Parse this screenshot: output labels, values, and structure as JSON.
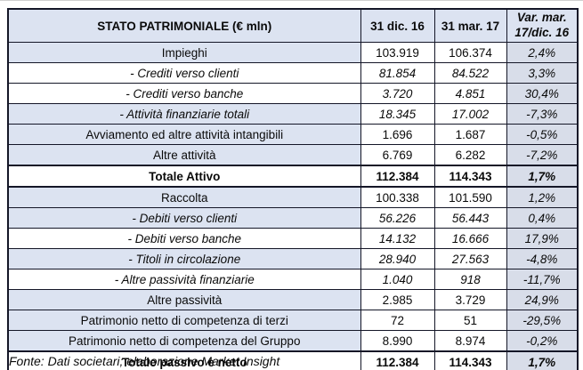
{
  "chart_data": {
    "type": "table",
    "title": "STATO PATRIMONIALE (€ mln)",
    "columns": [
      "STATO PATRIMONIALE (€ mln)",
      "31 dic. 16",
      "31 mar. 17",
      "Var. mar. 17/dic. 16"
    ],
    "rows": [
      {
        "label": "Impieghi",
        "dic16": "103.919",
        "mar17": "106.374",
        "var": "2,4%",
        "style": "normal",
        "shaded": true
      },
      {
        "label": "- Crediti verso clienti",
        "dic16": "81.854",
        "mar17": "84.522",
        "var": "3,3%",
        "style": "sub",
        "shaded": false
      },
      {
        "label": "- Crediti verso banche",
        "dic16": "3.720",
        "mar17": "4.851",
        "var": "30,4%",
        "style": "sub",
        "shaded": false
      },
      {
        "label": "- Attività finanziarie totali",
        "dic16": "18.345",
        "mar17": "17.002",
        "var": "-7,3%",
        "style": "sub",
        "shaded": true
      },
      {
        "label": "Avviamento ed altre attività intangibili",
        "dic16": "1.696",
        "mar17": "1.687",
        "var": "-0,5%",
        "style": "normal",
        "shaded": true
      },
      {
        "label": "Altre attività",
        "dic16": "6.769",
        "mar17": "6.282",
        "var": "-7,2%",
        "style": "normal",
        "shaded": true
      },
      {
        "label": "Totale Attivo",
        "dic16": "112.384",
        "mar17": "114.343",
        "var": "1,7%",
        "style": "total",
        "shaded": false
      },
      {
        "label": "Raccolta",
        "dic16": "100.338",
        "mar17": "101.590",
        "var": "1,2%",
        "style": "normal",
        "shaded": true
      },
      {
        "label": "- Debiti verso clienti",
        "dic16": "56.226",
        "mar17": "56.443",
        "var": "0,4%",
        "style": "sub",
        "shaded": true
      },
      {
        "label": "- Debiti verso banche",
        "dic16": "14.132",
        "mar17": "16.666",
        "var": "17,9%",
        "style": "sub",
        "shaded": false
      },
      {
        "label": "- Titoli in circolazione",
        "dic16": "28.940",
        "mar17": "27.563",
        "var": "-4,8%",
        "style": "sub",
        "shaded": true
      },
      {
        "label": "- Altre passività finanziarie",
        "dic16": "1.040",
        "mar17": "918",
        "var": "-11,7%",
        "style": "sub",
        "shaded": false
      },
      {
        "label": "Altre passività",
        "dic16": "2.985",
        "mar17": "3.729",
        "var": "24,9%",
        "style": "normal",
        "shaded": true
      },
      {
        "label": "Patrimonio netto di competenza di terzi",
        "dic16": "72",
        "mar17": "51",
        "var": "-29,5%",
        "style": "normal",
        "shaded": true
      },
      {
        "label": "Patrimonio netto di competenza del Gruppo",
        "dic16": "8.990",
        "mar17": "8.974",
        "var": "-0,2%",
        "style": "normal",
        "shaded": true
      },
      {
        "label": "Totale passivo e netto",
        "dic16": "112.384",
        "mar17": "114.343",
        "var": "1,7%",
        "style": "total",
        "shaded": false
      }
    ]
  },
  "header": {
    "col4_line1": "Var. mar.",
    "col4_line2": "17/dic. 16"
  },
  "footer": {
    "source_note": "Fonte: Dati societari; elaborazione Market Insight"
  },
  "colors": {
    "shaded_bg": "#dce3f1",
    "var_bg": "#d8dde9",
    "border": "#141627"
  }
}
